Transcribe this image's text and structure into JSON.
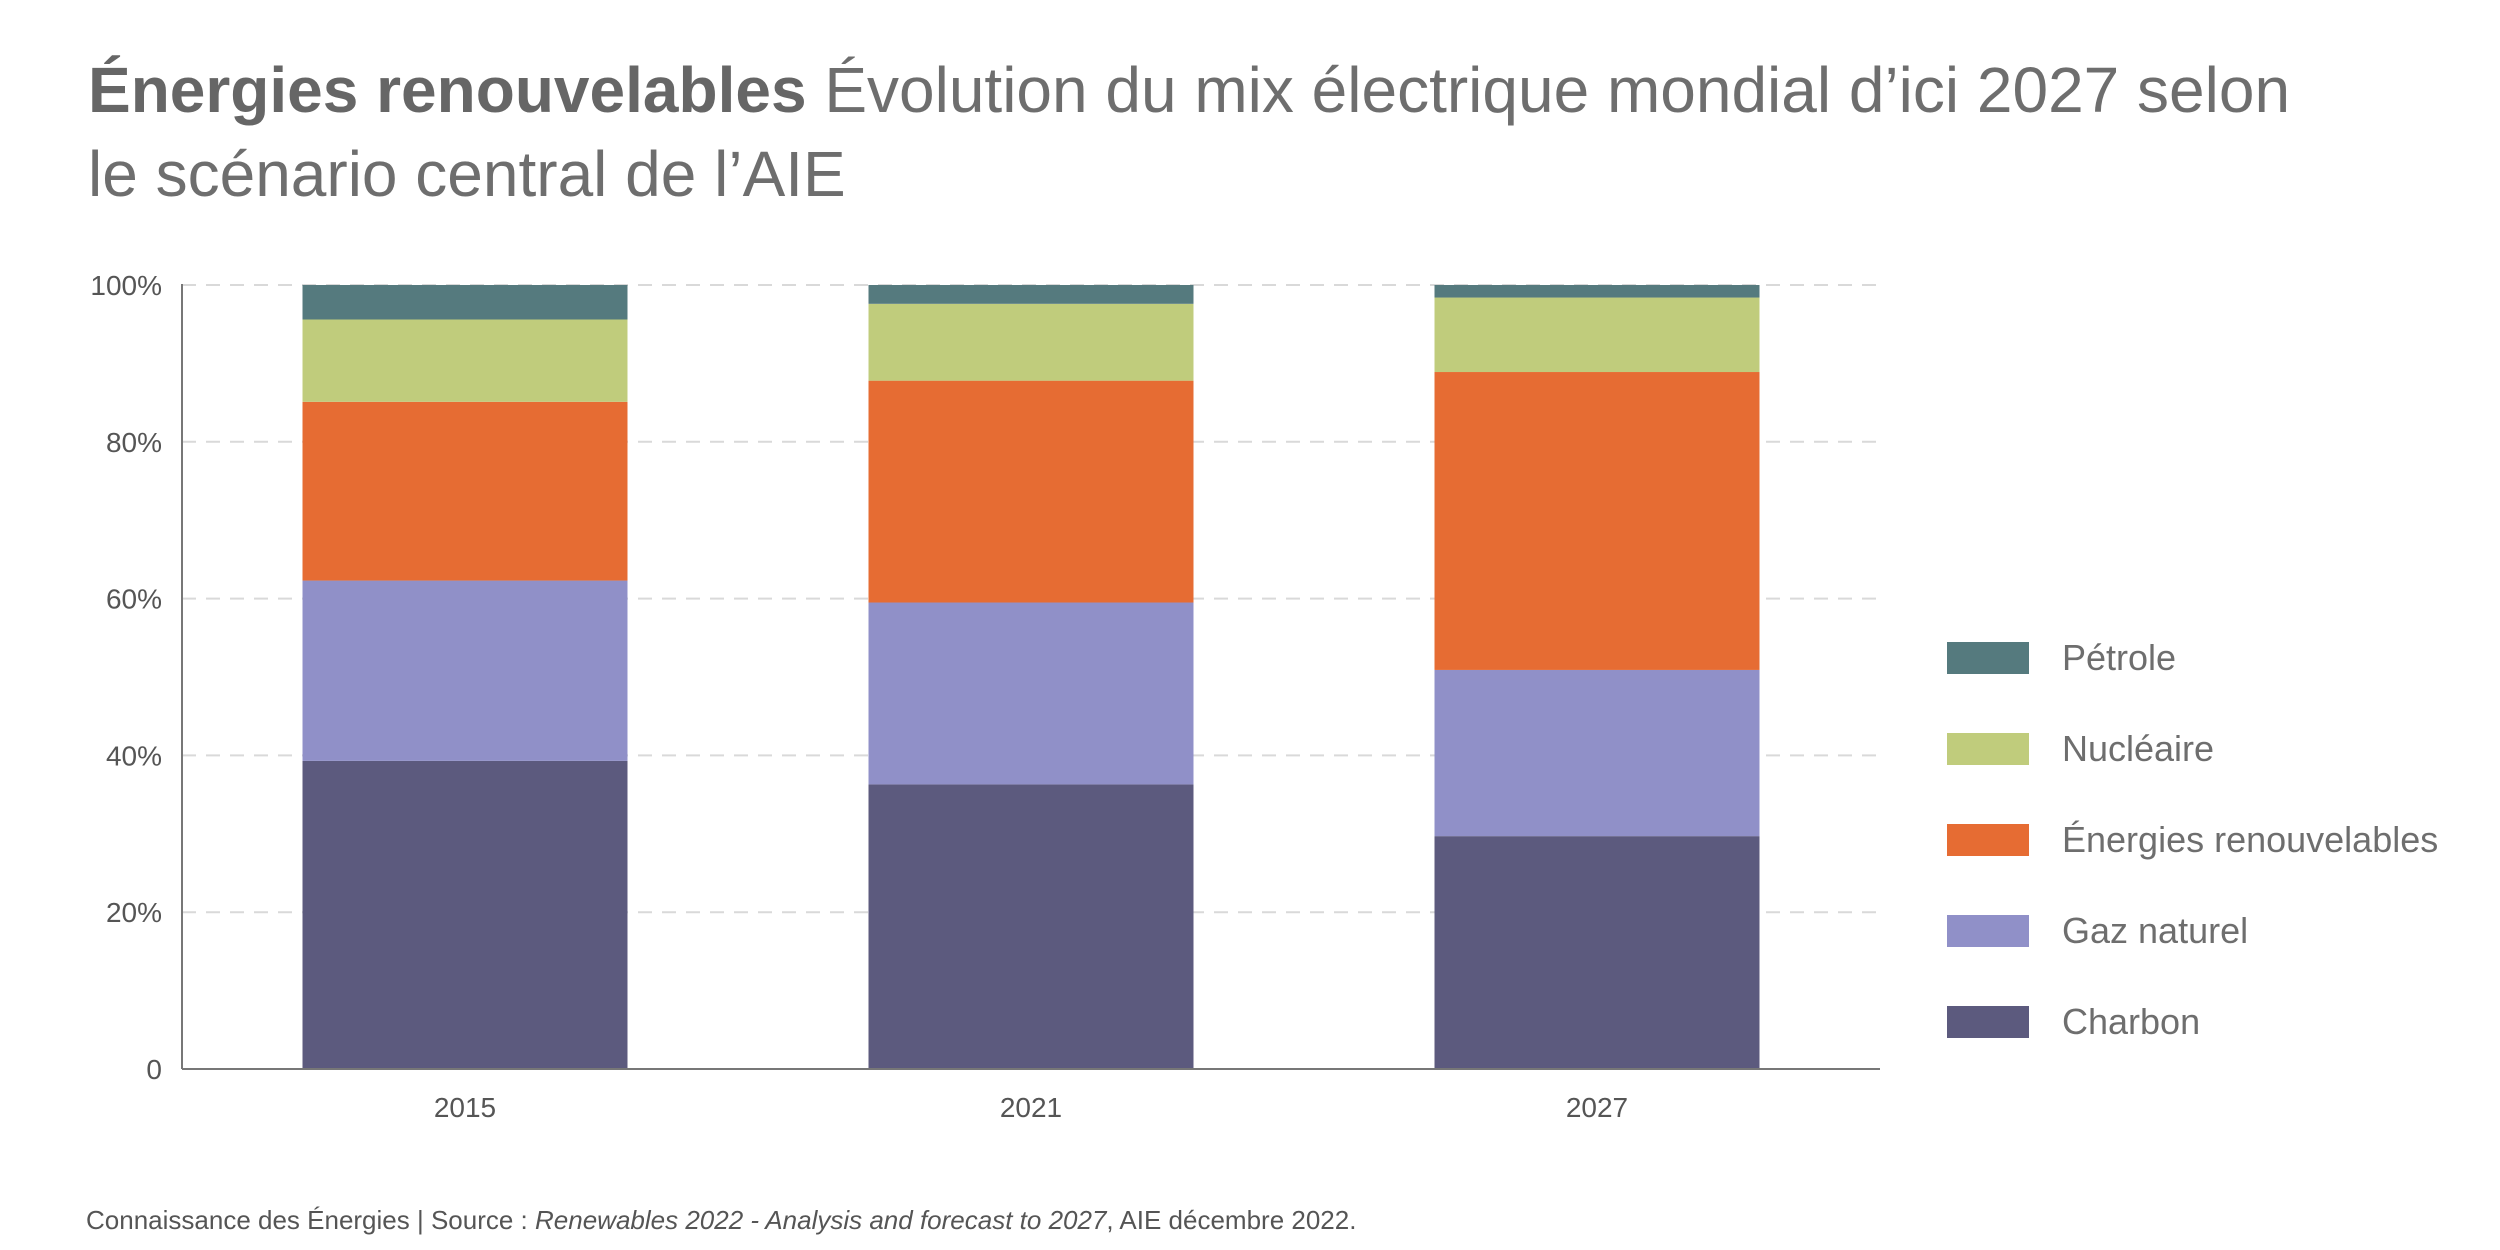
{
  "title": {
    "bold": "Énergies renouvelables",
    "rest": " Évolution du mix électrique mondial d’ici 2027 selon le scénario central de l’AIE"
  },
  "footer": {
    "prefix": "Connaissance des Énergies | Source : ",
    "italic": "Renewables 2022 - Analysis and forecast to 2027",
    "suffix": ", AIE décembre 2022."
  },
  "chart_data": {
    "type": "bar",
    "stacked": true,
    "categories": [
      "2015",
      "2021",
      "2027"
    ],
    "y_ticks": [
      "0",
      "20%",
      "40%",
      "60%",
      "80%",
      "100%"
    ],
    "ylim": [
      0,
      100
    ],
    "grid": true,
    "legend_position": "right",
    "series": [
      {
        "name": "Charbon",
        "color": "#5c5a7e",
        "values": [
          39.3,
          36.3,
          29.7
        ]
      },
      {
        "name": "Gaz naturel",
        "color": "#9090c8",
        "values": [
          23.0,
          23.2,
          21.2
        ]
      },
      {
        "name": "Énergies renouvelables",
        "color": "#e66c33",
        "values": [
          22.8,
          28.3,
          38.0
        ]
      },
      {
        "name": "Nucléaire",
        "color": "#c0cc7c",
        "values": [
          10.5,
          9.8,
          9.5
        ]
      },
      {
        "name": "Pétrole",
        "color": "#557a7e",
        "values": [
          4.4,
          2.4,
          1.6
        ]
      }
    ]
  }
}
